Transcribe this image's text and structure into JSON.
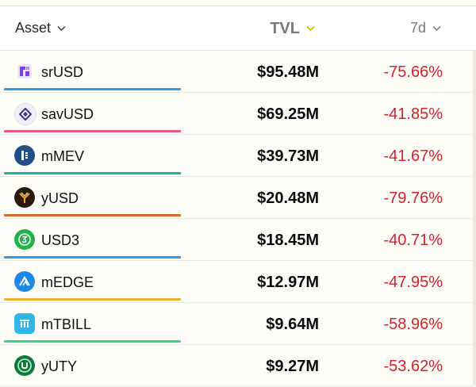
{
  "header": {
    "asset_label": "Asset",
    "tvl_label": "TVL",
    "change_label": "7d",
    "sort_accent": "#e6b400"
  },
  "rows": [
    {
      "name": "srUSD",
      "tvl": "$95.48M",
      "change": "-75.66%",
      "icon": "srusd-logo-icon",
      "icon_color": "#7b3fe4",
      "line_color": "#2e9be8"
    },
    {
      "name": "savUSD",
      "tvl": "$69.25M",
      "change": "-41.85%",
      "icon": "savusd-logo-icon",
      "icon_color": "#3b2e8f",
      "line_color": "#e05a86"
    },
    {
      "name": "mMEV",
      "tvl": "$39.73M",
      "change": "-41.67%",
      "icon": "mmev-logo-icon",
      "icon_color": "#1f4f86",
      "line_color": "#1bb39a"
    },
    {
      "name": "yUSD",
      "tvl": "$20.48M",
      "change": "-79.76%",
      "icon": "yusd-logo-icon",
      "icon_color": "#2b1a0c",
      "line_color": "#d9692a"
    },
    {
      "name": "USD3",
      "tvl": "$18.45M",
      "change": "-40.71%",
      "icon": "usd3-logo-icon",
      "icon_color": "#22b24c",
      "line_color": "#2e9be8"
    },
    {
      "name": "mEDGE",
      "tvl": "$12.97M",
      "change": "-47.95%",
      "icon": "medge-logo-icon",
      "icon_color": "#1e88e5",
      "line_color": "#e8b32a"
    },
    {
      "name": "mTBILL",
      "tvl": "$9.64M",
      "change": "-58.96%",
      "icon": "mtbill-logo-icon",
      "icon_color": "#2fb7e8",
      "line_color": "#3fd08a"
    },
    {
      "name": "yUTY",
      "tvl": "$9.27M",
      "change": "-53.62%",
      "icon": "yuty-logo-icon",
      "icon_color": "#0f7a3c",
      "line_color": ""
    }
  ],
  "colors": {
    "negative": "#d3222c",
    "row_bg": "#fdfcf6",
    "header_bg": "#ffffff"
  }
}
